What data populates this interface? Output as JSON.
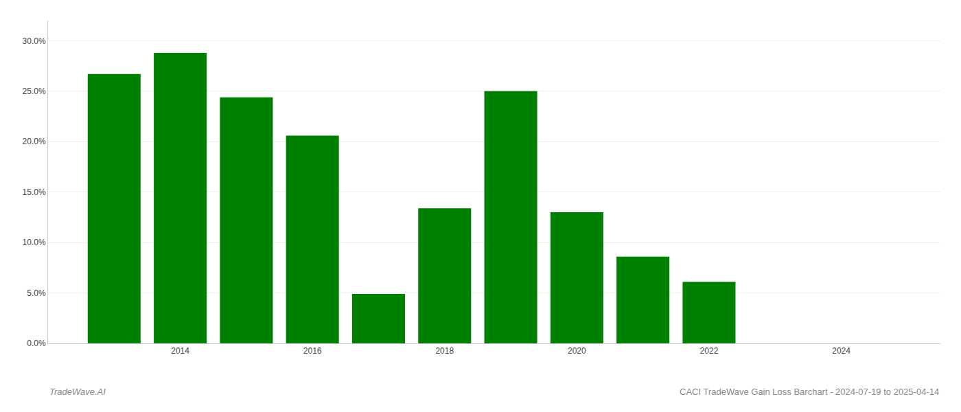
{
  "chart_data": {
    "type": "bar",
    "x": [
      2013,
      2014,
      2015,
      2016,
      2017,
      2018,
      2019,
      2020,
      2021,
      2022
    ],
    "values": [
      0.267,
      0.288,
      0.244,
      0.206,
      0.049,
      0.134,
      0.25,
      0.13,
      0.086,
      0.061
    ],
    "color": "#008000",
    "xlim": [
      2012.0,
      2025.5
    ],
    "xticks": [
      2014,
      2016,
      2018,
      2020,
      2022,
      2024
    ],
    "ylim": [
      0,
      0.32
    ],
    "yticks": [
      {
        "value": 0.0,
        "label": "0.0%"
      },
      {
        "value": 0.05,
        "label": "5.0%"
      },
      {
        "value": 0.1,
        "label": "10.0%"
      },
      {
        "value": 0.15,
        "label": "15.0%"
      },
      {
        "value": 0.2,
        "label": "20.0%"
      },
      {
        "value": 0.25,
        "label": "25.0%"
      },
      {
        "value": 0.3,
        "label": "30.0%"
      }
    ],
    "grid": "y",
    "annotations": [
      "TradeWave.AI",
      "CACI TradeWave Gain Loss Barchart - 2024-07-19 to 2025-04-14"
    ]
  }
}
